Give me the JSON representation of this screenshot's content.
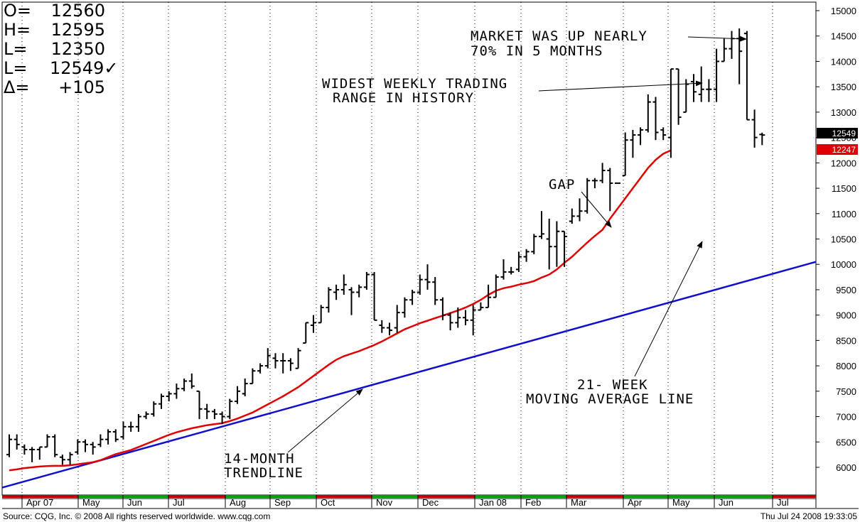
{
  "readout": {
    "open_label": "O=",
    "open_value": "12560",
    "high_label": "H=",
    "high_value": "12595",
    "low_label": "L=",
    "low_value": "12350",
    "last_label": "L=",
    "last_value": "12549✓",
    "change_label": "Δ=",
    "change_value": "+105"
  },
  "annotations": {
    "market_up_line1": "MARKET WAS UP NEARLY",
    "market_up_line2": "70% IN 5 MONTHS",
    "widest_line1": "WIDEST WEEKLY TRADING",
    "widest_line2": "RANGE IN HISTORY",
    "gap": "GAP",
    "ma_line1": "21- WEEK",
    "ma_line2": "MOVING AVERAGE LINE",
    "trend_line1": "14-MONTH",
    "trend_line2": "TRENDLINE"
  },
  "price_tags": {
    "last": "12549",
    "moving_average": "12247"
  },
  "footer": {
    "source": "Source: CQG, Inc. © 2008 All rights reserved worldwide. www.cqg.com",
    "timestamp": "Thu Jul 24 2008 19:33:05"
  },
  "colors": {
    "price_bars": "#000000",
    "moving_average": "#e00000",
    "trendline": "#1010cc",
    "last_tag_bg": "#000000",
    "ma_tag_bg": "#e00000"
  },
  "chart_data": {
    "type": "bar",
    "subtype": "weekly OHLC price bars",
    "ylim": [
      5500,
      15200
    ],
    "y_ticks": [
      15000,
      14500,
      14000,
      13500,
      13000,
      12500,
      12000,
      11500,
      11000,
      10500,
      10000,
      9500,
      9000,
      8500,
      8000,
      7500,
      7000,
      6500,
      6000
    ],
    "x_tick_labels": [
      "Apr 07",
      "May",
      "Jun",
      "Jul",
      "Aug",
      "Sep",
      "Oct",
      "Nov",
      "Dec",
      "Jan 08",
      "Feb",
      "Mar",
      "Apr",
      "May",
      "Jun",
      "Jul"
    ],
    "grid": "vertical dotted lines at month boundaries",
    "weeks": [
      {
        "o": 6250,
        "h": 6650,
        "l": 6200,
        "c": 6550
      },
      {
        "o": 6550,
        "h": 6650,
        "l": 6350,
        "c": 6450
      },
      {
        "o": 6400,
        "h": 6450,
        "l": 6250,
        "c": 6350
      },
      {
        "o": 6350,
        "h": 6400,
        "l": 6100,
        "c": 6350
      },
      {
        "o": 6350,
        "h": 6400,
        "l": 6150,
        "c": 6400
      },
      {
        "o": 6400,
        "h": 6650,
        "l": 6400,
        "c": 6600
      },
      {
        "o": 6600,
        "h": 6650,
        "l": 6200,
        "c": 6250
      },
      {
        "o": 6200,
        "h": 6250,
        "l": 6050,
        "c": 6150
      },
      {
        "o": 6150,
        "h": 6300,
        "l": 6050,
        "c": 6250
      },
      {
        "o": 6300,
        "h": 6550,
        "l": 6250,
        "c": 6500
      },
      {
        "o": 6500,
        "h": 6550,
        "l": 6300,
        "c": 6450
      },
      {
        "o": 6450,
        "h": 6500,
        "l": 6250,
        "c": 6400
      },
      {
        "o": 6450,
        "h": 6650,
        "l": 6400,
        "c": 6550
      },
      {
        "o": 6550,
        "h": 6750,
        "l": 6450,
        "c": 6700
      },
      {
        "o": 6700,
        "h": 6750,
        "l": 6500,
        "c": 6550
      },
      {
        "o": 6600,
        "h": 6900,
        "l": 6550,
        "c": 6800
      },
      {
        "o": 6800,
        "h": 6900,
        "l": 6700,
        "c": 6800
      },
      {
        "o": 6800,
        "h": 7050,
        "l": 6700,
        "c": 7000
      },
      {
        "o": 7000,
        "h": 7100,
        "l": 6950,
        "c": 7050
      },
      {
        "o": 7050,
        "h": 7300,
        "l": 7000,
        "c": 7250
      },
      {
        "o": 7250,
        "h": 7450,
        "l": 7150,
        "c": 7400
      },
      {
        "o": 7400,
        "h": 7500,
        "l": 7300,
        "c": 7450
      },
      {
        "o": 7450,
        "h": 7650,
        "l": 7350,
        "c": 7550
      },
      {
        "o": 7550,
        "h": 7750,
        "l": 7500,
        "c": 7700
      },
      {
        "o": 7700,
        "h": 7850,
        "l": 7550,
        "c": 7600
      },
      {
        "o": 7500,
        "h": 7500,
        "l": 6950,
        "c": 7150
      },
      {
        "o": 7150,
        "h": 7250,
        "l": 6950,
        "c": 7100
      },
      {
        "o": 7100,
        "h": 7150,
        "l": 6950,
        "c": 7050
      },
      {
        "o": 7050,
        "h": 7100,
        "l": 6850,
        "c": 7000
      },
      {
        "o": 7000,
        "h": 7350,
        "l": 6950,
        "c": 7300
      },
      {
        "o": 7300,
        "h": 7600,
        "l": 7250,
        "c": 7500
      },
      {
        "o": 7450,
        "h": 7750,
        "l": 7400,
        "c": 7650
      },
      {
        "o": 7650,
        "h": 7950,
        "l": 7650,
        "c": 7900
      },
      {
        "o": 7900,
        "h": 8050,
        "l": 7850,
        "c": 8000
      },
      {
        "o": 8000,
        "h": 8350,
        "l": 7950,
        "c": 8200
      },
      {
        "o": 8150,
        "h": 8250,
        "l": 7950,
        "c": 8100
      },
      {
        "o": 8100,
        "h": 8250,
        "l": 7850,
        "c": 8100
      },
      {
        "o": 8100,
        "h": 8150,
        "l": 7900,
        "c": 8050
      },
      {
        "o": 7950,
        "h": 8350,
        "l": 7950,
        "c": 8300
      },
      {
        "o": 8450,
        "h": 8850,
        "l": 8450,
        "c": 8850
      },
      {
        "o": 8800,
        "h": 9000,
        "l": 8650,
        "c": 8850
      },
      {
        "o": 8850,
        "h": 9200,
        "l": 8850,
        "c": 9150
      },
      {
        "o": 9150,
        "h": 9550,
        "l": 9050,
        "c": 9500
      },
      {
        "o": 9450,
        "h": 9600,
        "l": 9300,
        "c": 9500
      },
      {
        "o": 9500,
        "h": 9800,
        "l": 9400,
        "c": 9600
      },
      {
        "o": 9500,
        "h": 9550,
        "l": 9000,
        "c": 9450
      },
      {
        "o": 9450,
        "h": 9600,
        "l": 9350,
        "c": 9550
      },
      {
        "o": 9550,
        "h": 9850,
        "l": 9500,
        "c": 9800
      },
      {
        "o": 9800,
        "h": 9850,
        "l": 8900,
        "c": 8900
      },
      {
        "o": 8800,
        "h": 8900,
        "l": 8650,
        "c": 8750
      },
      {
        "o": 8750,
        "h": 8850,
        "l": 8600,
        "c": 8700
      },
      {
        "o": 8750,
        "h": 9200,
        "l": 8650,
        "c": 9050
      },
      {
        "o": 9050,
        "h": 9350,
        "l": 8950,
        "c": 9300
      },
      {
        "o": 9300,
        "h": 9500,
        "l": 9200,
        "c": 9450
      },
      {
        "o": 9450,
        "h": 9800,
        "l": 9400,
        "c": 9700
      },
      {
        "o": 9700,
        "h": 10000,
        "l": 9500,
        "c": 9650
      },
      {
        "o": 9650,
        "h": 9750,
        "l": 9200,
        "c": 9300
      },
      {
        "o": 9300,
        "h": 9350,
        "l": 8900,
        "c": 9000
      },
      {
        "o": 9000,
        "h": 9050,
        "l": 8700,
        "c": 8850
      },
      {
        "o": 8850,
        "h": 9150,
        "l": 8750,
        "c": 8950
      },
      {
        "o": 8950,
        "h": 9100,
        "l": 8800,
        "c": 8900
      },
      {
        "o": 8900,
        "h": 9200,
        "l": 8600,
        "c": 9100
      },
      {
        "o": 9100,
        "h": 9250,
        "l": 9100,
        "c": 9150
      },
      {
        "o": 9150,
        "h": 9600,
        "l": 9150,
        "c": 9350
      },
      {
        "o": 9350,
        "h": 9800,
        "l": 9350,
        "c": 9750
      },
      {
        "o": 9750,
        "h": 10100,
        "l": 9700,
        "c": 9850
      },
      {
        "o": 9850,
        "h": 9950,
        "l": 9800,
        "c": 9850
      },
      {
        "o": 9900,
        "h": 10250,
        "l": 9850,
        "c": 10150
      },
      {
        "o": 10150,
        "h": 10300,
        "l": 10050,
        "c": 10250
      },
      {
        "o": 10250,
        "h": 10600,
        "l": 10200,
        "c": 10550
      },
      {
        "o": 10550,
        "h": 11050,
        "l": 10500,
        "c": 10600
      },
      {
        "o": 10500,
        "h": 10900,
        "l": 9900,
        "c": 10350
      },
      {
        "o": 10350,
        "h": 10850,
        "l": 9950,
        "c": 10650
      },
      {
        "o": 10650,
        "h": 10650,
        "l": 9950,
        "c": 10550
      },
      {
        "o": 10850,
        "h": 11100,
        "l": 10800,
        "c": 10950
      },
      {
        "o": 10950,
        "h": 11300,
        "l": 10850,
        "c": 11050
      },
      {
        "o": 11050,
        "h": 11700,
        "l": 11000,
        "c": 11650
      },
      {
        "o": 11650,
        "h": 11700,
        "l": 11500,
        "c": 11650
      },
      {
        "o": 11650,
        "h": 12000,
        "l": 11600,
        "c": 11850
      },
      {
        "o": 11850,
        "h": 11900,
        "l": 11050,
        "c": 11600
      },
      {
        "o": 11600,
        "h": 11600,
        "l": 11600,
        "c": 11600
      },
      {
        "o": 11750,
        "h": 12600,
        "l": 11750,
        "c": 12450
      },
      {
        "o": 12450,
        "h": 12650,
        "l": 12100,
        "c": 12550
      },
      {
        "o": 12550,
        "h": 12700,
        "l": 12350,
        "c": 12650
      },
      {
        "o": 12650,
        "h": 13350,
        "l": 12600,
        "c": 13200
      },
      {
        "o": 13200,
        "h": 13300,
        "l": 12450,
        "c": 12600
      },
      {
        "o": 12650,
        "h": 12700,
        "l": 12450,
        "c": 12550
      },
      {
        "o": 12500,
        "h": 13850,
        "l": 12100,
        "c": 13850
      },
      {
        "o": 13850,
        "h": 13850,
        "l": 12750,
        "c": 12900
      },
      {
        "o": 13000,
        "h": 13650,
        "l": 13000,
        "c": 13550
      },
      {
        "o": 13600,
        "h": 13750,
        "l": 13200,
        "c": 13400
      },
      {
        "o": 13350,
        "h": 13900,
        "l": 13200,
        "c": 13450
      },
      {
        "o": 13450,
        "h": 13650,
        "l": 13200,
        "c": 13450
      },
      {
        "o": 13450,
        "h": 14250,
        "l": 13200,
        "c": 14000
      },
      {
        "o": 14000,
        "h": 14450,
        "l": 14000,
        "c": 14250
      },
      {
        "o": 14250,
        "h": 14600,
        "l": 14050,
        "c": 14450
      },
      {
        "o": 14450,
        "h": 14650,
        "l": 13550,
        "c": 14200
      },
      {
        "o": 14550,
        "h": 14600,
        "l": 12850,
        "c": 12850
      },
      {
        "o": 12850,
        "h": 13050,
        "l": 12300,
        "c": 12500
      },
      {
        "o": 12560,
        "h": 12595,
        "l": 12350,
        "c": 12549
      }
    ],
    "moving_average_21_week": [
      5940,
      5960,
      5985,
      6000,
      6015,
      6025,
      6030,
      6030,
      6040,
      6060,
      6080,
      6100,
      6140,
      6200,
      6260,
      6300,
      6340,
      6400,
      6460,
      6520,
      6580,
      6640,
      6690,
      6730,
      6770,
      6800,
      6830,
      6850,
      6870,
      6910,
      6960,
      7020,
      7080,
      7160,
      7240,
      7320,
      7400,
      7490,
      7580,
      7690,
      7800,
      7910,
      8020,
      8120,
      8190,
      8240,
      8290,
      8350,
      8410,
      8480,
      8560,
      8640,
      8720,
      8780,
      8840,
      8890,
      8940,
      8990,
      9040,
      9090,
      9150,
      9220,
      9300,
      9400,
      9480,
      9530,
      9560,
      9600,
      9630,
      9670,
      9740,
      9800,
      9900,
      10030,
      10150,
      10290,
      10430,
      10560,
      10680,
      10900,
      11100,
      11300,
      11500,
      11700,
      11900,
      12060,
      12180,
      12247
    ],
    "trendline_14_month": {
      "start": 5600,
      "end": 10050
    },
    "series": [
      {
        "name": "21- WEEK MOVING AVERAGE LINE"
      },
      {
        "name": "14-MONTH TRENDLINE"
      }
    ]
  }
}
